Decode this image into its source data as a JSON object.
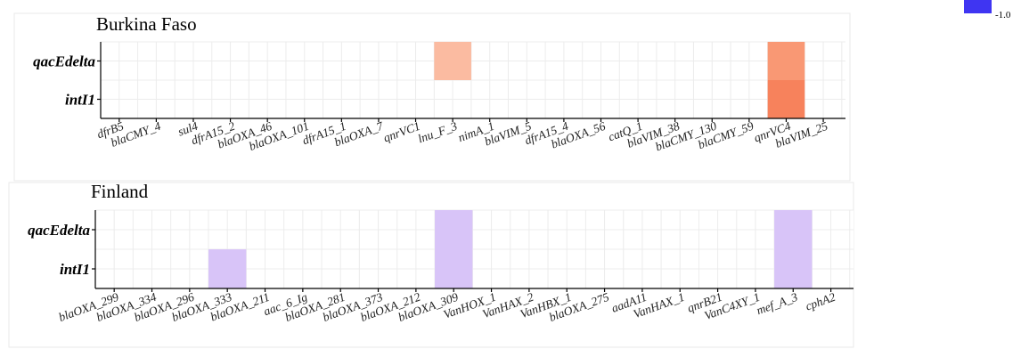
{
  "legend": {
    "label": "-1.0",
    "color": "#3f35f2"
  },
  "chart_data": [
    {
      "type": "heatmap",
      "title": "Burkina Faso",
      "categories": [
        "dfrB5",
        "blaCMY_4",
        "sul4",
        "dfrA15_2",
        "blaOXA_46",
        "blaOXA_101",
        "dfrA15_1",
        "blaOXA_7",
        "qnrVC1",
        "lnu_F_3",
        "nimA_1",
        "blaVIM_5",
        "dfrA15_4",
        "blaOXA_56",
        "catQ_1",
        "blaVIM_38",
        "blaCMY_130",
        "blaCMY_59",
        "qnrVC4",
        "blaVIM_25"
      ],
      "rows": [
        "qacEdelta",
        "intI1"
      ],
      "cells": [
        {
          "row": "qacEdelta",
          "col": "lnu_F_3",
          "color": "#fbbba1"
        },
        {
          "row": "qacEdelta",
          "col": "qnrVC4",
          "color": "#f99874"
        },
        {
          "row": "intI1",
          "col": "qnrVC4",
          "color": "#f7825c"
        }
      ],
      "grid": true
    },
    {
      "type": "heatmap",
      "title": "Finland",
      "categories": [
        "blaOXA_299",
        "blaOXA_334",
        "blaOXA_296",
        "blaOXA_333",
        "blaOXA_211",
        "aac_6_Ig",
        "blaOXA_281",
        "blaOXA_373",
        "blaOXA_212",
        "blaOXA_309",
        "VanHOX_1",
        "VanHAX_2",
        "VanHBX_1",
        "blaOXA_275",
        "aadA11",
        "VanHAX_1",
        "qnrB21",
        "VanC4XY_1",
        "mef_A_3",
        "cphA2"
      ],
      "rows": [
        "qacEdelta",
        "intI1"
      ],
      "cells": [
        {
          "row": "qacEdelta",
          "col": "blaOXA_309",
          "color": "#d8c4f8"
        },
        {
          "row": "qacEdelta",
          "col": "mef_A_3",
          "color": "#d8c4f8"
        },
        {
          "row": "intI1",
          "col": "blaOXA_333",
          "color": "#d8c4f8"
        },
        {
          "row": "intI1",
          "col": "blaOXA_309",
          "color": "#d8c4f8"
        },
        {
          "row": "intI1",
          "col": "mef_A_3",
          "color": "#d8c4f8"
        }
      ],
      "grid": true
    }
  ]
}
